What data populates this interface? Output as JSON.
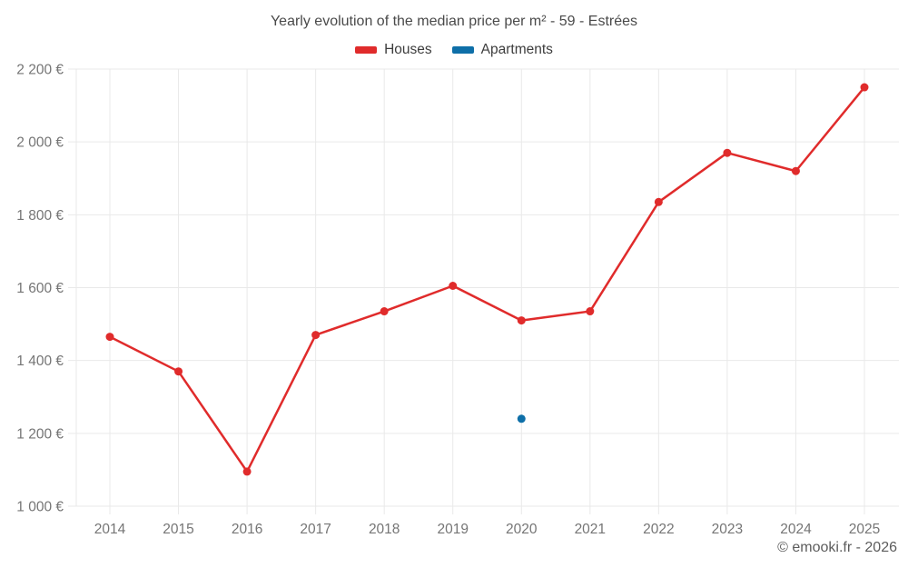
{
  "title": "Yearly evolution of the median price per m² - 59 - Estrées",
  "footer": "© emooki.fr - 2026",
  "legend": [
    {
      "label": "Houses",
      "color": "#e02b2b"
    },
    {
      "label": "Apartments",
      "color": "#0e6fa8"
    }
  ],
  "colors": {
    "houses": "#e02b2b",
    "apartments": "#0e6fa8",
    "grid": "#e9e9e9",
    "axis_text": "#757575"
  },
  "chart_data": {
    "type": "line",
    "title": "Yearly evolution of the median price per m² - 59 - Estrées",
    "x": [
      "2014",
      "2015",
      "2016",
      "2017",
      "2018",
      "2019",
      "2020",
      "2021",
      "2022",
      "2023",
      "2024",
      "2025"
    ],
    "series": [
      {
        "name": "Houses",
        "color": "#e02b2b",
        "values": [
          1465,
          1370,
          1095,
          1470,
          1535,
          1605,
          1510,
          1535,
          1835,
          1970,
          1920,
          2150
        ]
      },
      {
        "name": "Apartments",
        "color": "#0e6fa8",
        "values": [
          null,
          null,
          null,
          null,
          null,
          null,
          1240,
          null,
          null,
          null,
          null,
          null
        ]
      }
    ],
    "xlabel": "",
    "ylabel": "",
    "ylim": [
      1000,
      2200
    ],
    "ytick_step": 200,
    "ytick_labels": [
      "1 000 €",
      "1 200 €",
      "1 400 €",
      "1 600 €",
      "1 800 €",
      "2 000 €",
      "2 200 €"
    ],
    "grid": true,
    "legend_position": "top",
    "currency": "€"
  }
}
